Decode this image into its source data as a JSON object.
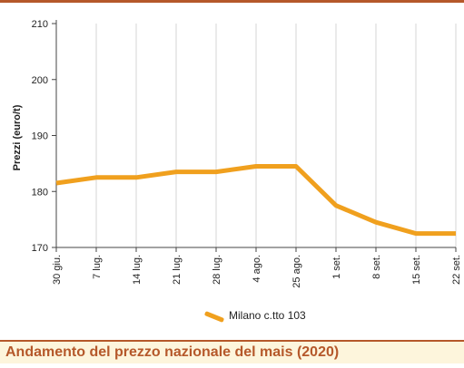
{
  "caption": "Andamento del prezzo nazionale del mais (2020)",
  "colors": {
    "series": "#f0a01e",
    "accent": "#b5582a",
    "caption_bg": "#fdf5dc"
  },
  "chart_data": {
    "type": "line",
    "title": "",
    "xlabel": "",
    "ylabel": "Prezzi (euro/t)",
    "ylim": [
      170,
      210
    ],
    "yticks": [
      170,
      180,
      190,
      200,
      210
    ],
    "categories": [
      "30 giu.",
      "7 lug.",
      "14 lug.",
      "21 lug.",
      "28 lug.",
      "4 ago.",
      "25 ago.",
      "1 set.",
      "8 set.",
      "15 set.",
      "22 set."
    ],
    "series": [
      {
        "name": "Milano  c.tto 103",
        "values": [
          181.5,
          182.5,
          182.5,
          183.5,
          183.5,
          184.5,
          184.5,
          177.5,
          174.5,
          172.5,
          172.5
        ]
      }
    ],
    "grid": true,
    "grid_axis": "x",
    "legend_position": "bottom"
  }
}
